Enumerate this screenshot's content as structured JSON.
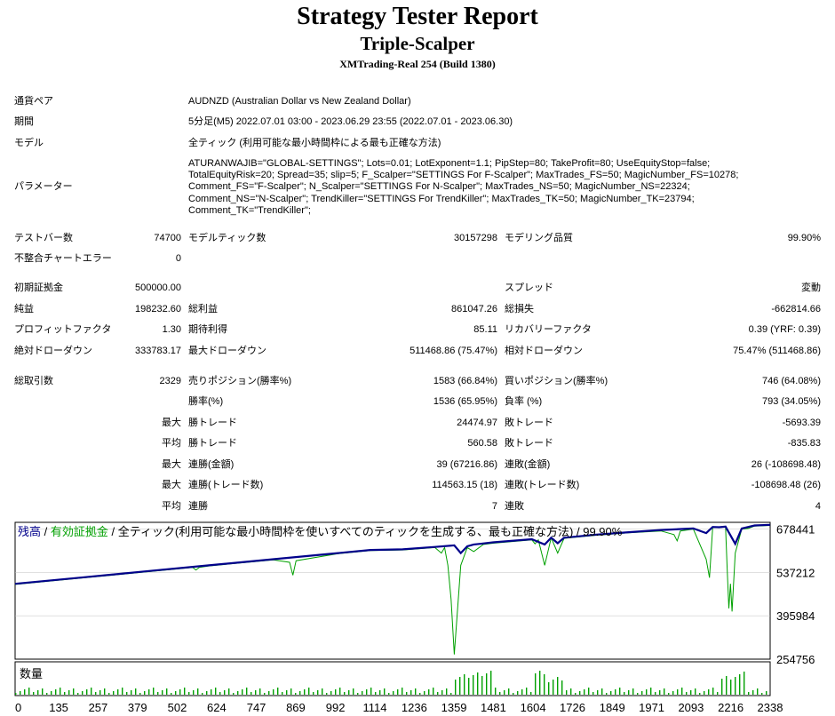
{
  "header": {
    "title": "Strategy Tester Report",
    "ea_name": "Triple-Scalper",
    "broker": "XMTrading-Real 254 (Build 1380)"
  },
  "info": {
    "symbol_label": "通貨ペア",
    "symbol_value": "AUDNZD (Australian Dollar vs New Zealand Dollar)",
    "period_label": "期間",
    "period_value": "5分足(M5) 2022.07.01 03:00 - 2023.06.29 23:55 (2022.07.01 - 2023.06.30)",
    "model_label": "モデル",
    "model_value": "全ティック (利用可能な最小時間枠による最も正確な方法)",
    "params_label": "パラメーター",
    "params_lines": [
      "ATURANWAJIB=\"GLOBAL-SETTINGS\"; Lots=0.01; LotExponent=1.1; PipStep=80; TakeProfit=80; UseEquityStop=false;",
      "TotalEquityRisk=20; Spread=35; slip=5; F_Scalper=\"SETTINGS For F-Scalper\"; MaxTrades_FS=50; MagicNumber_FS=10278;",
      "Comment_FS=\"F-Scalper\"; N_Scalper=\"SETTINGS For N-Scalper\"; MaxTrades_NS=50; MagicNumber_NS=22324;",
      "Comment_NS=\"N-Scalper\"; TrendKiller=\"SETTINGS For TrendKiller\"; MaxTrades_TK=50; MagicNumber_TK=23794;",
      "Comment_TK=\"TrendKiller\";"
    ]
  },
  "stats": {
    "bars_label": "テストバー数",
    "bars_value": "74700",
    "ticks_label": "モデルティック数",
    "ticks_value": "30157298",
    "quality_label": "モデリング品質",
    "quality_value": "99.90%",
    "errors_label": "不整合チャートエラー",
    "errors_value": "0",
    "deposit_label": "初期証拠金",
    "deposit_value": "500000.00",
    "spread_label": "スプレッド",
    "spread_value": "変動",
    "net_label": "純益",
    "net_value": "198232.60",
    "gross_profit_label": "総利益",
    "gross_profit_value": "861047.26",
    "gross_loss_label": "総損失",
    "gross_loss_value": "-662814.66",
    "pf_label": "プロフィットファクタ",
    "pf_value": "1.30",
    "expected_label": "期待利得",
    "expected_value": "85.11",
    "recovery_label": "リカバリーファクタ",
    "recovery_value": "0.39 (YRF: 0.39)",
    "abs_dd_label": "絶対ドローダウン",
    "abs_dd_value": "333783.17",
    "max_dd_label": "最大ドローダウン",
    "max_dd_value": "511468.86 (75.47%)",
    "rel_dd_label": "相対ドローダウン",
    "rel_dd_value": "75.47% (511468.86)",
    "total_label": "総取引数",
    "total_value": "2329",
    "short_label": "売りポジション(勝率%)",
    "short_value": "1583 (66.84%)",
    "long_label": "買いポジション(勝率%)",
    "long_value": "746 (64.08%)",
    "winrate_label": "勝率(%)",
    "winrate_value": "1536 (65.95%)",
    "lossrate_label": "負率 (%)",
    "lossrate_value": "793 (34.05%)",
    "max_word": "最大",
    "avg_word": "平均",
    "win_trade_label": "勝トレード",
    "loss_trade_label": "敗トレード",
    "max_win_value": "24474.97",
    "max_loss_value": "-5693.39",
    "avg_win_value": "560.58",
    "avg_loss_value": "-835.83",
    "cons_win_amount_label": "連勝(金額)",
    "cons_win_amount_value": "39 (67216.86)",
    "cons_loss_amount_label": "連敗(金額)",
    "cons_loss_amount_value": "26 (-108698.48)",
    "cons_win_trades_label": "連勝(トレード数)",
    "cons_win_trades_value": "114563.15 (18)",
    "cons_loss_trades_label": "連敗(トレード数)",
    "cons_loss_trades_value": "-108698.48 (26)",
    "avg_cons_win_label": "連勝",
    "avg_cons_win_value": "7",
    "avg_cons_loss_label": "連敗",
    "avg_cons_loss_value": "4"
  },
  "chart": {
    "legend_balance": "残高",
    "legend_sep": " / ",
    "legend_equity": "有効証拠金",
    "legend_desc": " / 全ティック(利用可能な最小時間枠を使いすべてのティックを生成する、最も正確な方法) / 99.90%",
    "volume_label": "数量",
    "colors": {
      "balance": "#00008b",
      "equity": "#00a000",
      "grid": "#c0c0c0"
    }
  },
  "chart_data": {
    "type": "line",
    "x_ticks": [
      0,
      135,
      257,
      379,
      502,
      624,
      747,
      869,
      992,
      1114,
      1236,
      1359,
      1481,
      1604,
      1726,
      1849,
      1971,
      2093,
      2216,
      2338
    ],
    "y_ticks": [
      678441,
      537212,
      395984,
      254756
    ],
    "ylim": [
      254756,
      700000
    ],
    "xlim": [
      0,
      2338
    ],
    "series": [
      {
        "name": "残高",
        "x": [
          0,
          200,
          400,
          600,
          800,
          1000,
          1100,
          1200,
          1300,
          1360,
          1380,
          1400,
          1420,
          1440,
          1480,
          1600,
          1640,
          1660,
          1680,
          1700,
          1800,
          1900,
          2000,
          2100,
          2140,
          2160,
          2180,
          2200,
          2230,
          2250,
          2270,
          2290,
          2338
        ],
        "values": [
          500000,
          520000,
          540000,
          560000,
          580000,
          600000,
          610000,
          612000,
          620000,
          625000,
          600000,
          622000,
          628000,
          630000,
          635000,
          645000,
          628000,
          650000,
          632000,
          650000,
          660000,
          668000,
          675000,
          680000,
          665000,
          685000,
          684000,
          686000,
          630000,
          680000,
          685000,
          690000,
          692000
        ]
      },
      {
        "name": "有効証拠金",
        "x": [
          0,
          200,
          300,
          550,
          560,
          570,
          600,
          800,
          850,
          860,
          870,
          1000,
          1100,
          1200,
          1300,
          1320,
          1330,
          1340,
          1350,
          1360,
          1380,
          1400,
          1420,
          1450,
          1480,
          1600,
          1610,
          1620,
          1640,
          1660,
          1680,
          1700,
          1800,
          1900,
          2000,
          2040,
          2050,
          2060,
          2100,
          2140,
          2150,
          2160,
          2180,
          2200,
          2205,
          2210,
          2215,
          2220,
          2230,
          2250,
          2270,
          2290,
          2338
        ],
        "values": [
          498000,
          518000,
          528000,
          553000,
          545000,
          553000,
          558000,
          578000,
          570000,
          528000,
          575000,
          598000,
          608000,
          610000,
          618000,
          600000,
          618000,
          560000,
          450000,
          270000,
          560000,
          618000,
          605000,
          628000,
          632000,
          643000,
          630000,
          643000,
          560000,
          650000,
          600000,
          648000,
          658000,
          666000,
          672000,
          660000,
          640000,
          672000,
          678000,
          580000,
          520000,
          683000,
          683000,
          685000,
          550000,
          420000,
          500000,
          410000,
          600000,
          678000,
          680000,
          688000,
          690000
        ]
      }
    ],
    "volume": {
      "name": "数量"
    }
  }
}
